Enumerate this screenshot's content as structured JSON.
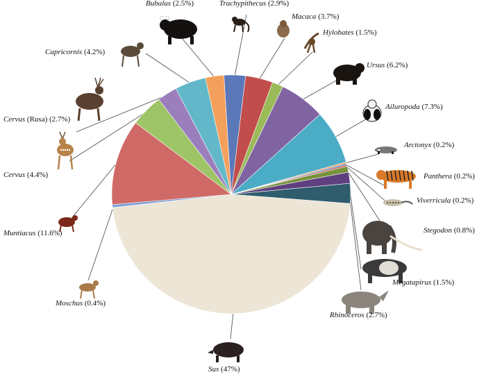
{
  "chart_data": {
    "type": "pie",
    "title": "",
    "legend": "none",
    "slices": [
      {
        "genus": "Trachypithecus",
        "value": 2.9,
        "pct_text": " (2.9%)",
        "color": "#5b78b8",
        "icon": "monkey-icon"
      },
      {
        "genus": "Macaca",
        "value": 3.7,
        "pct_text": " (3.7%)",
        "color": "#c14e4c",
        "icon": "macaque-icon"
      },
      {
        "genus": "Hylobates",
        "value": 1.5,
        "pct_text": " (1.5%)",
        "color": "#9bbb59",
        "icon": "gibbon-icon"
      },
      {
        "genus": "Ursus",
        "value": 6.2,
        "pct_text": " (6.2%)",
        "color": "#8064a2",
        "icon": "bear-icon"
      },
      {
        "genus": "Ailuropoda",
        "value": 7.3,
        "pct_text": " (7.3%)",
        "color": "#4bacc6",
        "icon": "panda-icon"
      },
      {
        "genus": "Arctonyx",
        "value": 0.2,
        "pct_text": " (0.2%)",
        "color": "#f79646",
        "icon": "badger-icon"
      },
      {
        "genus": "Panthera",
        "value": 0.2,
        "pct_text": " (0.2%)",
        "color": "#4f81bd",
        "icon": "tiger-icon"
      },
      {
        "genus": "Viverricula",
        "value": 0.2,
        "pct_text": " (0.2%)",
        "color": "#c0504d",
        "icon": "civet-icon"
      },
      {
        "genus": "Stegodon",
        "value": 0.8,
        "pct_text": " (0.8%)",
        "color": "#77933c",
        "icon": "elephant-icon"
      },
      {
        "genus": "Megatapirus",
        "value": 1.5,
        "pct_text": " (1.5%)",
        "color": "#5f3f7f",
        "icon": "tapir-icon"
      },
      {
        "genus": "Rhinoceros",
        "value": 2.7,
        "pct_text": " (2.7%)",
        "color": "#2f5d6e",
        "icon": "rhinoceros-icon"
      },
      {
        "genus": "Sus",
        "value": 47,
        "pct_text": " (47%)",
        "color": "#ede5d6",
        "icon": "boar-icon"
      },
      {
        "genus": "Moschus",
        "value": 0.4,
        "pct_text": " (0.4%)",
        "color": "#7a9ed6",
        "icon": "musk-deer-icon"
      },
      {
        "genus": "Muntiacus",
        "value": 11.6,
        "pct_text": " (11.6%)",
        "color": "#d06a66",
        "icon": "muntjac-icon"
      },
      {
        "genus": "Cervus",
        "value": 4.4,
        "pct_text": " (4.4%)",
        "color": "#9dc466",
        "icon": "spotted-deer-icon"
      },
      {
        "genus": "Cervus",
        "genus_suffix": " (Rusa)",
        "value": 2.7,
        "pct_text": " (2.7%)",
        "color": "#9b7fbc",
        "icon": "sambar-icon"
      },
      {
        "genus": "Capricornis",
        "value": 4.2,
        "pct_text": " (4.2%)",
        "color": "#62b8c9",
        "icon": "serow-icon"
      },
      {
        "genus": "Bubalus",
        "value": 2.5,
        "pct_text": " (2.5%)",
        "color": "#f4a05d",
        "icon": "buffalo-icon"
      }
    ]
  }
}
